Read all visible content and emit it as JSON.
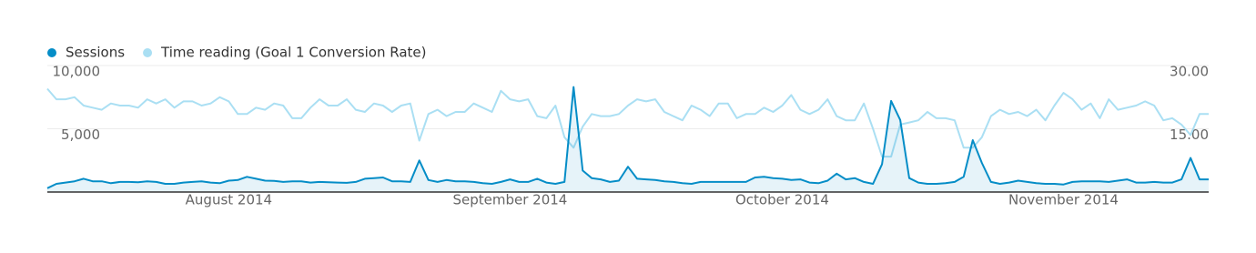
{
  "chart_data": {
    "type": "line",
    "categories": [
      null,
      null,
      null,
      null,
      null,
      null,
      null,
      null,
      null,
      null,
      null,
      null,
      null,
      null,
      null,
      null,
      null,
      null,
      null,
      null,
      "August 2014",
      null,
      null,
      null,
      null,
      null,
      null,
      null,
      null,
      null,
      null,
      null,
      null,
      null,
      null,
      null,
      null,
      null,
      null,
      null,
      null,
      null,
      null,
      null,
      null,
      null,
      null,
      null,
      null,
      null,
      null,
      "September 2014",
      null,
      null,
      null,
      null,
      null,
      null,
      null,
      null,
      null,
      null,
      null,
      null,
      null,
      null,
      null,
      null,
      null,
      null,
      null,
      null,
      null,
      null,
      null,
      null,
      null,
      null,
      null,
      null,
      null,
      "October 2014",
      null,
      null,
      null,
      null,
      null,
      null,
      null,
      null,
      null,
      null,
      null,
      null,
      null,
      null,
      null,
      null,
      null,
      null,
      null,
      null,
      null,
      null,
      null,
      null,
      null,
      null,
      null,
      null,
      null,
      null,
      "November 2014",
      null,
      null,
      null,
      null,
      null,
      null,
      null,
      null,
      null,
      null,
      null,
      null,
      null,
      null,
      null,
      null
    ],
    "series": [
      {
        "name": "Sessions",
        "color": "#058dc7",
        "fill": true,
        "values": [
          300,
          650,
          750,
          850,
          1050,
          850,
          850,
          700,
          800,
          800,
          780,
          850,
          800,
          650,
          650,
          750,
          800,
          850,
          750,
          700,
          900,
          950,
          1200,
          1050,
          900,
          880,
          800,
          850,
          850,
          750,
          800,
          780,
          750,
          730,
          800,
          1050,
          1100,
          1150,
          850,
          850,
          800,
          2500,
          950,
          800,
          950,
          850,
          850,
          800,
          700,
          650,
          800,
          1000,
          800,
          800,
          1050,
          750,
          650,
          800,
          8300,
          1700,
          1100,
          1000,
          800,
          900,
          2000,
          1050,
          1000,
          950,
          850,
          800,
          700,
          650,
          800,
          800,
          800,
          800,
          800,
          800,
          1150,
          1200,
          1100,
          1050,
          950,
          1000,
          750,
          700,
          900,
          1450,
          1000,
          1100,
          800,
          650,
          2200,
          7200,
          5700,
          1100,
          750,
          650,
          650,
          700,
          800,
          1200,
          4100,
          2300,
          800,
          650,
          750,
          900,
          800,
          700,
          650,
          650,
          600,
          800,
          850,
          850,
          850,
          800,
          900,
          1000,
          750,
          750,
          800,
          750,
          750,
          1000,
          2700,
          1000,
          1000
        ]
      },
      {
        "name": "Time reading (Goal 1 Conversion Rate)",
        "color": "#aadff3",
        "axis": "y2",
        "values": [
          24.5,
          22,
          22,
          22.5,
          20.5,
          20,
          19.5,
          21,
          20.5,
          20.5,
          20,
          22,
          21,
          22,
          20,
          21.5,
          21.5,
          20.5,
          21,
          22.5,
          21.5,
          18.5,
          18.5,
          20,
          19.5,
          21,
          20.5,
          17.5,
          17.5,
          20,
          22,
          20.5,
          20.5,
          22,
          19.5,
          19,
          21,
          20.5,
          19,
          20.5,
          21,
          12.2,
          18.5,
          19.5,
          18,
          19,
          19,
          21,
          20,
          19,
          24,
          22,
          21.5,
          22,
          18,
          17.5,
          20.5,
          13,
          10.5,
          15.5,
          18.5,
          18,
          18,
          18.5,
          20.5,
          22,
          21.5,
          22,
          19,
          18,
          17,
          20.5,
          19.5,
          18,
          21,
          21,
          17.5,
          18.5,
          18.5,
          20,
          19,
          20.5,
          23,
          19.5,
          18.5,
          19.5,
          22,
          18,
          17,
          17,
          21,
          15,
          8.4,
          8.4,
          16,
          16.5,
          17,
          19,
          17.5,
          17.5,
          17,
          10.5,
          10.5,
          13,
          18,
          19.5,
          18.5,
          19,
          18,
          19.5,
          17,
          20.5,
          23.5,
          22,
          19.5,
          21,
          17.5,
          22,
          19.5,
          20,
          20.5,
          21.5,
          20.5,
          17,
          17.5,
          16,
          13.5,
          18.5,
          18.5
        ]
      }
    ],
    "ylim": [
      0,
      10000
    ],
    "yticks": [
      {
        "value": 5000,
        "label": "5,000"
      },
      {
        "value": 10000,
        "label": "10,000"
      }
    ],
    "y2lim": [
      0,
      30
    ],
    "y2ticks": [
      {
        "value": 15,
        "label": "15.00"
      },
      {
        "value": 30,
        "label": "30.00"
      }
    ],
    "grid": true,
    "legend": "top-left"
  }
}
